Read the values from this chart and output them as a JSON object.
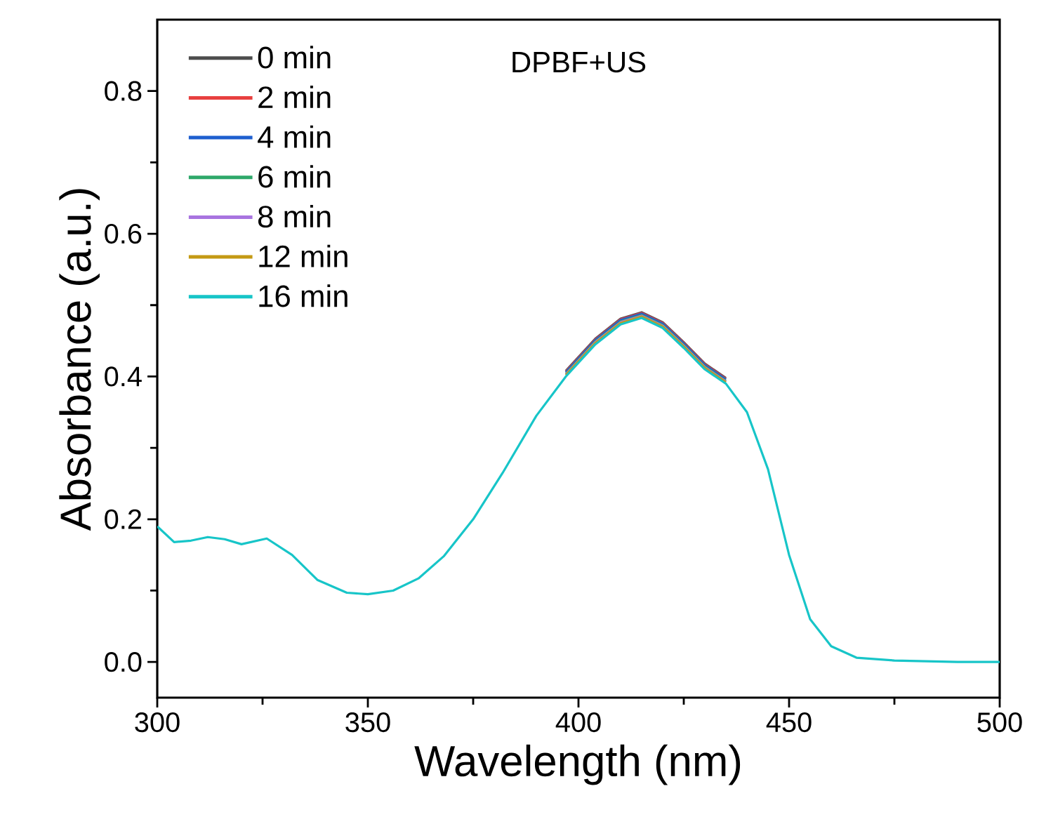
{
  "chart_data": {
    "type": "line",
    "title": "DPBF+US",
    "xlabel": "Wavelength (nm)",
    "ylabel": "Absorbance (a.u.)",
    "x": [
      300,
      304,
      308,
      312,
      316,
      320,
      326,
      332,
      338,
      345,
      350,
      356,
      362,
      368,
      375,
      382,
      390,
      397,
      404,
      410,
      415,
      420,
      425,
      430,
      435,
      440,
      445,
      450,
      455,
      460,
      466,
      475,
      490,
      500
    ],
    "series": [
      {
        "name": "0 min",
        "color": "#4d4d4d",
        "values": [
          null,
          null,
          null,
          null,
          null,
          null,
          null,
          null,
          null,
          null,
          null,
          null,
          null,
          null,
          null,
          null,
          null,
          0.408,
          0.453,
          0.481,
          0.49,
          0.476,
          0.448,
          0.418,
          0.398,
          null,
          null,
          null,
          null,
          null,
          null,
          null,
          null,
          null
        ]
      },
      {
        "name": "2 min",
        "color": "#e8403f",
        "values": [
          null,
          null,
          null,
          null,
          null,
          null,
          null,
          null,
          null,
          null,
          null,
          null,
          null,
          null,
          null,
          null,
          null,
          0.407,
          0.452,
          0.48,
          0.489,
          0.475,
          0.447,
          0.417,
          0.397,
          null,
          null,
          null,
          null,
          null,
          null,
          null,
          null,
          null
        ]
      },
      {
        "name": "4 min",
        "color": "#1e5fcf",
        "values": [
          null,
          null,
          null,
          null,
          null,
          null,
          null,
          null,
          null,
          null,
          null,
          null,
          null,
          null,
          null,
          null,
          null,
          0.406,
          0.451,
          0.479,
          0.488,
          0.474,
          0.446,
          0.416,
          0.396,
          null,
          null,
          null,
          null,
          null,
          null,
          null,
          null,
          null
        ]
      },
      {
        "name": "6 min",
        "color": "#2ea86a",
        "values": [
          null,
          null,
          null,
          null,
          null,
          null,
          null,
          null,
          null,
          null,
          null,
          null,
          null,
          null,
          null,
          null,
          null,
          0.404,
          0.449,
          0.477,
          0.486,
          0.472,
          0.444,
          0.414,
          0.394,
          null,
          null,
          null,
          null,
          null,
          null,
          null,
          null,
          null
        ]
      },
      {
        "name": "8 min",
        "color": "#a874e0",
        "values": [
          null,
          null,
          null,
          null,
          null,
          null,
          null,
          null,
          null,
          null,
          null,
          null,
          null,
          null,
          null,
          null,
          null,
          0.403,
          0.448,
          0.476,
          0.485,
          0.471,
          0.443,
          0.413,
          0.393,
          null,
          null,
          null,
          null,
          null,
          null,
          null,
          null,
          null
        ]
      },
      {
        "name": "12 min",
        "color": "#c49a14",
        "values": [
          null,
          null,
          null,
          null,
          null,
          null,
          null,
          null,
          null,
          null,
          null,
          null,
          null,
          null,
          null,
          null,
          null,
          0.402,
          0.447,
          0.475,
          0.484,
          0.47,
          0.442,
          0.412,
          0.392,
          null,
          null,
          null,
          null,
          null,
          null,
          null,
          null,
          null
        ]
      },
      {
        "name": "16 min",
        "color": "#17c5c8",
        "values": [
          0.19,
          0.168,
          0.17,
          0.175,
          0.172,
          0.165,
          0.173,
          0.15,
          0.115,
          0.097,
          0.095,
          0.1,
          0.117,
          0.148,
          0.2,
          0.265,
          0.345,
          0.4,
          0.445,
          0.473,
          0.482,
          0.468,
          0.44,
          0.41,
          0.39,
          0.35,
          0.27,
          0.15,
          0.06,
          0.022,
          0.006,
          0.002,
          0,
          0
        ]
      }
    ],
    "xlim": [
      300,
      500
    ],
    "xticks": [
      300,
      350,
      400,
      450,
      500
    ],
    "ylim": [
      -0.05,
      0.9
    ],
    "yticks": [
      {
        "value": 0,
        "label": "0.0"
      },
      {
        "value": 0.2,
        "label": "0.2"
      },
      {
        "value": 0.4,
        "label": "0.4"
      },
      {
        "value": 0.6,
        "label": "0.6"
      },
      {
        "value": 0.8,
        "label": "0.8"
      }
    ],
    "grid": false,
    "legend": "top left",
    "marker": "none",
    "line_style": "solid"
  }
}
